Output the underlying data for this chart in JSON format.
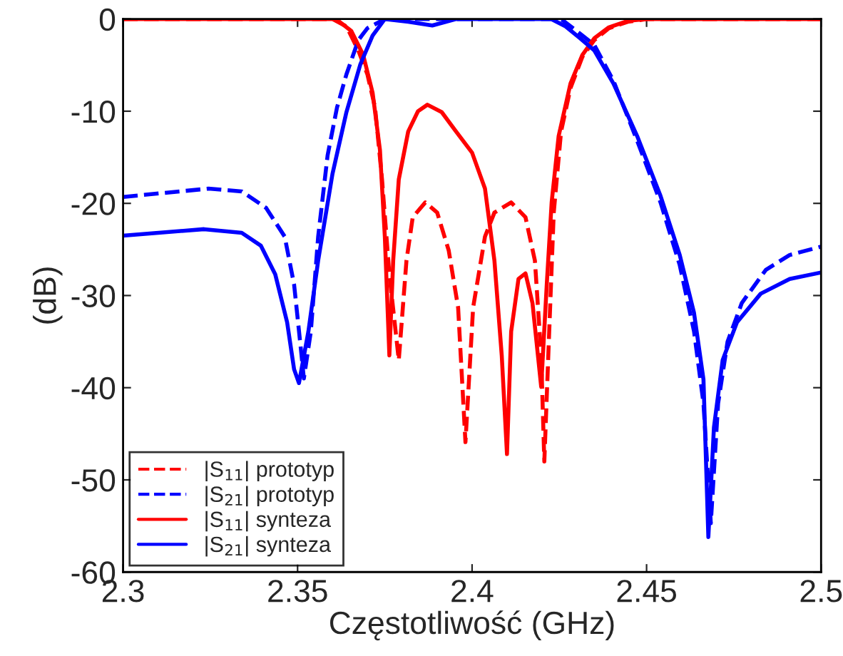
{
  "chart_data": {
    "type": "line",
    "xlabel": "Częstotliwość (GHz)",
    "ylabel": "(dB)",
    "xlim": [
      2.3,
      2.5
    ],
    "xticks": [
      2.3,
      2.35,
      2.4,
      2.45,
      2.5
    ],
    "ylim": [
      -60,
      0
    ],
    "yticks": [
      -60,
      -50,
      -40,
      -30,
      -20,
      -10,
      0
    ],
    "grid": false,
    "legend": "bottom left",
    "marker": "none",
    "series": [
      {
        "name": "|S$_{11}$| prototyp",
        "color": "#ff0000",
        "line_style": "dashed",
        "x": [
          2.3,
          2.36,
          2.364,
          2.3674,
          2.37,
          2.3722,
          2.3742,
          2.3763,
          2.379,
          2.3812,
          2.383,
          2.3866,
          2.39,
          2.3933,
          2.396,
          2.3981,
          2.4003,
          2.4037,
          2.4064,
          2.4112,
          2.4153,
          2.418,
          2.4198,
          2.4207,
          2.4221,
          2.4234,
          2.4255,
          2.4282,
          2.4316,
          2.435,
          2.4392,
          2.4446,
          2.45,
          2.5
        ],
        "values": [
          0,
          0,
          -0.8,
          -3.4,
          -6,
          -9.6,
          -17.4,
          -27.7,
          -37,
          -26.2,
          -21.5,
          -19.9,
          -21,
          -25.1,
          -31.3,
          -45.9,
          -31.3,
          -23.6,
          -21,
          -19.9,
          -21.5,
          -26.2,
          -36.5,
          -48,
          -33.9,
          -21,
          -12.2,
          -7.5,
          -4.1,
          -2.3,
          -1,
          -0.3,
          0,
          0
        ]
      },
      {
        "name": "|S$_{21}$| prototyp",
        "color": "#0000ff",
        "line_style": "dashed",
        "x": [
          2.3,
          2.3245,
          2.334,
          2.341,
          2.3463,
          2.349,
          2.351,
          2.3518,
          2.3538,
          2.3559,
          2.3586,
          2.3613,
          2.364,
          2.3674,
          2.37,
          2.375,
          2.4255,
          2.431,
          2.435,
          2.4405,
          2.4473,
          2.454,
          2.4595,
          2.4636,
          2.4663,
          2.4684,
          2.4705,
          2.4732,
          2.4773,
          2.4842,
          2.491,
          2.5
        ],
        "values": [
          -19.3,
          -18.4,
          -18.7,
          -20.5,
          -23.6,
          -28.8,
          -36,
          -39,
          -33.9,
          -23.6,
          -14.8,
          -9.6,
          -6,
          -2.3,
          -1,
          0,
          0,
          -1.6,
          -2.8,
          -6.7,
          -13.2,
          -19.9,
          -26.7,
          -33.9,
          -41.7,
          -54.7,
          -41.7,
          -35,
          -30.8,
          -27.2,
          -25.6,
          -24.7
        ]
      },
      {
        "name": "|S$_{11}$| synteza",
        "color": "#ff0000",
        "line_style": "solid",
        "x": [
          2.3,
          2.361,
          2.3654,
          2.3688,
          2.3715,
          2.3736,
          2.375,
          2.3763,
          2.3774,
          2.379,
          2.3817,
          2.3845,
          2.3872,
          2.3913,
          2.3954,
          2.4,
          2.4037,
          2.4064,
          2.4085,
          2.41,
          2.4112,
          2.4133,
          2.4153,
          2.4173,
          2.4198,
          2.4214,
          2.4228,
          2.4248,
          2.4282,
          2.4316,
          2.435,
          2.4392,
          2.4446,
          2.45,
          2.5
        ],
        "values": [
          0,
          0,
          -1.3,
          -3.9,
          -8,
          -14.2,
          -23.6,
          -36.5,
          -26.2,
          -17.4,
          -12.2,
          -10,
          -9.3,
          -10.1,
          -12.2,
          -14.5,
          -18.4,
          -26.2,
          -36.5,
          -47.2,
          -33.9,
          -28.2,
          -27.6,
          -30.8,
          -39.9,
          -28.8,
          -19.9,
          -12.7,
          -7,
          -3.9,
          -2.1,
          -0.9,
          -0.2,
          0,
          0
        ]
      },
      {
        "name": "|S$_{21}$| synteza",
        "color": "#0000ff",
        "line_style": "solid",
        "x": [
          2.3,
          2.3232,
          2.334,
          2.3395,
          2.3436,
          2.347,
          2.349,
          2.3504,
          2.3531,
          2.3559,
          2.36,
          2.364,
          2.368,
          2.3715,
          2.375,
          2.3817,
          2.3886,
          2.3955,
          2.4227,
          2.4268,
          2.431,
          2.435,
          2.4405,
          2.4473,
          2.454,
          2.4595,
          2.4636,
          2.4663,
          2.4677,
          2.4693,
          2.4718,
          2.4759,
          2.4827,
          2.491,
          2.5
        ],
        "values": [
          -23.5,
          -22.8,
          -23.2,
          -24.6,
          -27.7,
          -32.9,
          -38,
          -39.5,
          -33.9,
          -26.2,
          -16.8,
          -10.1,
          -4.9,
          -1.8,
          0,
          -0.3,
          -0.7,
          0,
          0,
          -0.8,
          -2.1,
          -3.4,
          -7,
          -12.7,
          -19.2,
          -25.6,
          -31.9,
          -39.1,
          -56.2,
          -44.3,
          -37,
          -32.9,
          -29.8,
          -28.2,
          -27.5
        ]
      }
    ]
  }
}
